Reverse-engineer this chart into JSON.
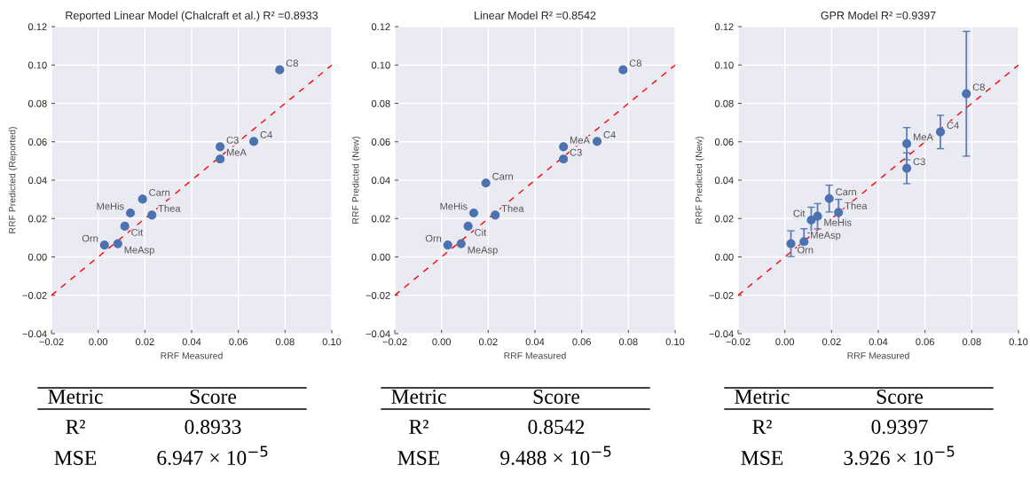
{
  "chart_data": [
    {
      "type": "scatter",
      "title": "Reported Linear Model (Chalcraft et al.) R² =0.8933",
      "xlabel": "RRF Measured",
      "ylabel": "RRF Predicted (Reported)",
      "xlim": [
        -0.02,
        0.1
      ],
      "ylim": [
        -0.04,
        0.12
      ],
      "xticks": [
        {
          "value": -0.02,
          "label": "−0.02"
        },
        {
          "value": 0,
          "label": "0.00"
        },
        {
          "value": 0.02,
          "label": "0.02"
        },
        {
          "value": 0.04,
          "label": "0.04"
        },
        {
          "value": 0.06,
          "label": "0.06"
        },
        {
          "value": 0.08,
          "label": "0.08"
        },
        {
          "value": 0.1,
          "label": "0.10"
        }
      ],
      "yticks": [
        {
          "value": -0.04,
          "label": "−0.04"
        },
        {
          "value": -0.02,
          "label": "−0.02"
        },
        {
          "value": 0,
          "label": "0.00"
        },
        {
          "value": 0.02,
          "label": "0.02"
        },
        {
          "value": 0.04,
          "label": "0.04"
        },
        {
          "value": 0.06,
          "label": "0.06"
        },
        {
          "value": 0.08,
          "label": "0.08"
        },
        {
          "value": 0.1,
          "label": "0.10"
        },
        {
          "value": 0.12,
          "label": "0.12"
        }
      ],
      "grid": true,
      "series": [
        {
          "marker": "circle",
          "color": "#4c72b0",
          "x": [
            0.0777,
            0.0522,
            0.0522,
            0.0666,
            0.019,
            0.0138,
            0.023,
            0.0114,
            0.0027,
            0.0084
          ],
          "values": [
            0.0975,
            0.0574,
            0.051,
            0.0602,
            0.0301,
            0.0229,
            0.0218,
            0.016,
            0.0062,
            0.0069
          ]
        },
        {
          "type": "line",
          "color": "#ff0000",
          "line_style": "dashed",
          "x": [
            -0.02,
            0.1
          ],
          "values": [
            -0.02,
            0.1
          ]
        }
      ],
      "annotations": [
        {
          "text": "C8",
          "x": 0.0777,
          "y": 0.0975
        },
        {
          "text": "C3",
          "x": 0.0522,
          "y": 0.0574
        },
        {
          "text": "MeA",
          "x": 0.0522,
          "y": 0.051
        },
        {
          "text": "C4",
          "x": 0.0666,
          "y": 0.0602
        },
        {
          "text": "Carn",
          "x": 0.019,
          "y": 0.0301
        },
        {
          "text": "MeHis",
          "x": 0.0138,
          "y": 0.0229
        },
        {
          "text": "Thea",
          "x": 0.023,
          "y": 0.0218
        },
        {
          "text": "Cit",
          "x": 0.0114,
          "y": 0.016
        },
        {
          "text": "Orn",
          "x": 0.0027,
          "y": 0.0062
        },
        {
          "text": "MeAsp",
          "x": 0.0084,
          "y": 0.0069
        },
        "Metric",
        "Score",
        "R²",
        "0.8933",
        "MSE",
        "6.947 × 10$^{−5}$"
      ]
    },
    {
      "type": "scatter",
      "title": "Linear Model R² =0.8542",
      "xlabel": "RRF Measured",
      "ylabel": "RRF Predicted (New)",
      "xlim": [
        -0.02,
        0.1
      ],
      "ylim": [
        -0.04,
        0.12
      ],
      "xticks": [
        {
          "value": -0.02,
          "label": "−0.02"
        },
        {
          "value": 0,
          "label": "0.00"
        },
        {
          "value": 0.02,
          "label": "0.02"
        },
        {
          "value": 0.04,
          "label": "0.04"
        },
        {
          "value": 0.06,
          "label": "0.06"
        },
        {
          "value": 0.08,
          "label": "0.08"
        },
        {
          "value": 0.1,
          "label": "0.10"
        }
      ],
      "yticks": [
        {
          "value": -0.04,
          "label": "−0.04"
        },
        {
          "value": -0.02,
          "label": "−0.02"
        },
        {
          "value": 0,
          "label": "0.00"
        },
        {
          "value": 0.02,
          "label": "0.02"
        },
        {
          "value": 0.04,
          "label": "0.04"
        },
        {
          "value": 0.06,
          "label": "0.06"
        },
        {
          "value": 0.08,
          "label": "0.08"
        },
        {
          "value": 0.1,
          "label": "0.10"
        },
        {
          "value": 0.12,
          "label": "0.12"
        }
      ],
      "grid": true,
      "series": [
        {
          "marker": "circle",
          "color": "#4c72b0",
          "x": [
            0.0777,
            0.0522,
            0.0522,
            0.0666,
            0.019,
            0.0138,
            0.023,
            0.0114,
            0.0027,
            0.0084
          ],
          "values": [
            0.0975,
            0.0574,
            0.051,
            0.0602,
            0.0385,
            0.0229,
            0.0218,
            0.016,
            0.0062,
            0.0069
          ]
        },
        {
          "type": "line",
          "color": "#ff0000",
          "line_style": "dashed",
          "x": [
            -0.02,
            0.1
          ],
          "values": [
            -0.02,
            0.1
          ]
        }
      ],
      "annotations": [
        {
          "text": "C8",
          "x": 0.0777,
          "y": 0.0975
        },
        {
          "text": "MeA",
          "x": 0.0522,
          "y": 0.0574
        },
        {
          "text": "C3",
          "x": 0.0522,
          "y": 0.051
        },
        {
          "text": "C4",
          "x": 0.0666,
          "y": 0.0602
        },
        {
          "text": "Carn",
          "x": 0.019,
          "y": 0.0385
        },
        {
          "text": "MeHis",
          "x": 0.0138,
          "y": 0.0229
        },
        {
          "text": "Thea",
          "x": 0.023,
          "y": 0.0218
        },
        {
          "text": "Cit",
          "x": 0.0114,
          "y": 0.016
        },
        {
          "text": "Orn",
          "x": 0.0027,
          "y": 0.0062
        },
        {
          "text": "MeAsp",
          "x": 0.0084,
          "y": 0.0069
        },
        "Metric",
        "Score",
        "R²",
        "0.8542",
        "MSE",
        "9.488 × 10$^{−5}$"
      ]
    },
    {
      "type": "scatter",
      "title": "GPR Model R² =0.9397",
      "xlabel": "RRF Measured",
      "ylabel": "RRF Predicted (New)",
      "xlim": [
        -0.02,
        0.1
      ],
      "ylim": [
        -0.04,
        0.12
      ],
      "xticks": [
        {
          "value": -0.02,
          "label": "−0.02"
        },
        {
          "value": 0,
          "label": "0.00"
        },
        {
          "value": 0.02,
          "label": "0.02"
        },
        {
          "value": 0.04,
          "label": "0.04"
        },
        {
          "value": 0.06,
          "label": "0.06"
        },
        {
          "value": 0.08,
          "label": "0.08"
        },
        {
          "value": 0.1,
          "label": "0.10"
        }
      ],
      "yticks": [
        {
          "value": -0.04,
          "label": "−0.04"
        },
        {
          "value": -0.02,
          "label": "−0.02"
        },
        {
          "value": 0,
          "label": "0.00"
        },
        {
          "value": 0.02,
          "label": "0.02"
        },
        {
          "value": 0.04,
          "label": "0.04"
        },
        {
          "value": 0.06,
          "label": "0.06"
        },
        {
          "value": 0.08,
          "label": "0.08"
        },
        {
          "value": 0.1,
          "label": "0.10"
        },
        {
          "value": 0.12,
          "label": "0.12"
        }
      ],
      "grid": true,
      "series": [
        {
          "marker": "circle",
          "color": "#4c72b0",
          "x": [
            0.0777,
            0.0522,
            0.0522,
            0.0666,
            0.019,
            0.014,
            0.023,
            0.0113,
            0.0026,
            0.0082
          ],
          "values": [
            0.085,
            0.059,
            0.0462,
            0.0651,
            0.0304,
            0.0212,
            0.0232,
            0.0192,
            0.0069,
            0.0079
          ],
          "errors": [
            0.0325,
            0.0084,
            0.008,
            0.0087,
            0.007,
            0.0066,
            0.0068,
            0.0067,
            0.0067,
            0.0068
          ]
        },
        {
          "type": "line",
          "color": "#ff0000",
          "line_style": "dashed",
          "x": [
            -0.02,
            0.1
          ],
          "values": [
            -0.02,
            0.1
          ]
        }
      ],
      "annotations": [
        {
          "text": "C8",
          "x": 0.0777,
          "y": 0.085
        },
        {
          "text": "MeA",
          "x": 0.0522,
          "y": 0.059
        },
        {
          "text": "C3",
          "x": 0.0522,
          "y": 0.0462
        },
        {
          "text": "C4",
          "x": 0.0666,
          "y": 0.0651
        },
        {
          "text": "Carn",
          "x": 0.019,
          "y": 0.0304
        },
        {
          "text": "MeHis",
          "x": 0.014,
          "y": 0.0212
        },
        {
          "text": "Thea",
          "x": 0.023,
          "y": 0.0232
        },
        {
          "text": "Cit",
          "x": 0.0113,
          "y": 0.0192
        },
        {
          "text": "Orn",
          "x": 0.0026,
          "y": 0.0069
        },
        {
          "text": "MeAsp",
          "x": 0.0082,
          "y": 0.0079
        },
        "Metric",
        "Score",
        "R²",
        "0.9397",
        "MSE",
        "3.926 × 10$^{−5}$"
      ]
    }
  ]
}
